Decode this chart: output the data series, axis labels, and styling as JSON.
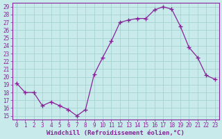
{
  "x": [
    0,
    1,
    2,
    3,
    4,
    5,
    6,
    7,
    8,
    9,
    10,
    11,
    12,
    13,
    14,
    15,
    16,
    17,
    18,
    19,
    20,
    21,
    22,
    23
  ],
  "y": [
    19.2,
    18.0,
    18.0,
    16.3,
    16.8,
    16.3,
    15.8,
    15.0,
    15.8,
    20.3,
    22.5,
    24.6,
    27.0,
    27.3,
    27.5,
    27.5,
    28.6,
    29.0,
    28.7,
    26.5,
    23.8,
    22.5,
    20.2,
    19.7
  ],
  "line_color": "#882299",
  "marker": "+",
  "marker_size": 4,
  "bg_color": "#c8eaea",
  "grid_color": "#a0cccc",
  "xlabel": "Windchill (Refroidissement éolien,°C)",
  "ylabel_ticks": [
    15,
    16,
    17,
    18,
    19,
    20,
    21,
    22,
    23,
    24,
    25,
    26,
    27,
    28,
    29
  ],
  "ylim": [
    14.5,
    29.5
  ],
  "xlim": [
    -0.5,
    23.5
  ],
  "tick_fontsize": 5.5,
  "xlabel_fontsize": 6.5
}
